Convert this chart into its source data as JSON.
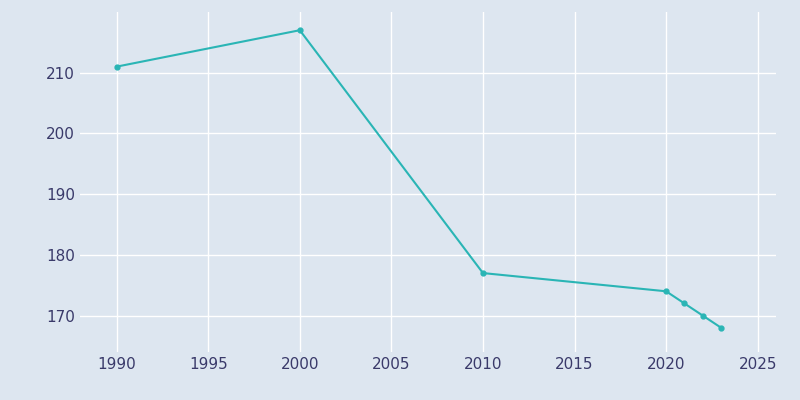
{
  "years": [
    1990,
    2000,
    2010,
    2020,
    2021,
    2022,
    2023
  ],
  "population": [
    211,
    217,
    177,
    174,
    172,
    170,
    168
  ],
  "line_color": "#2ab5b5",
  "marker_color": "#2ab5b5",
  "bg_color": "#dde6f0",
  "grid_color": "#ffffff",
  "axis_label_color": "#3a3a6a",
  "xlim": [
    1988,
    2026
  ],
  "ylim": [
    164,
    220
  ],
  "xticks": [
    1990,
    1995,
    2000,
    2005,
    2010,
    2015,
    2020,
    2025
  ],
  "yticks": [
    170,
    180,
    190,
    200,
    210
  ],
  "figsize": [
    8.0,
    4.0
  ],
  "dpi": 100
}
